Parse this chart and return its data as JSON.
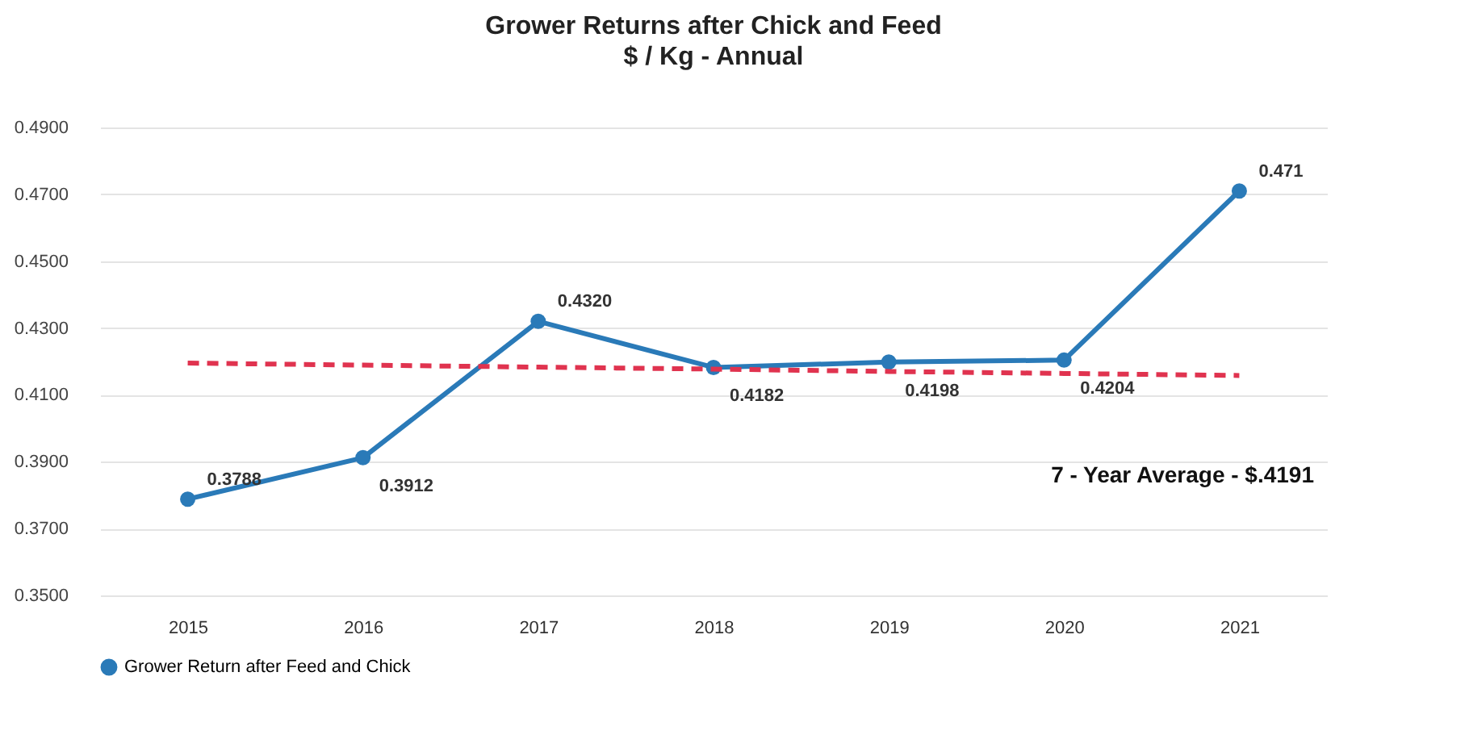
{
  "chart_data": {
    "type": "line",
    "title": "Grower Returns after Chick and Feed",
    "subtitle": "$ / Kg - Annual",
    "categories": [
      "2015",
      "2016",
      "2017",
      "2018",
      "2019",
      "2020",
      "2021"
    ],
    "series": [
      {
        "name": "Grower Return after Feed and Chick",
        "color": "#2a7ab8",
        "marker": "circle",
        "line_style": "solid",
        "values": [
          0.3788,
          0.3912,
          0.432,
          0.4182,
          0.4198,
          0.4204,
          0.471
        ],
        "value_labels": [
          "0.3788",
          "0.3912",
          "0.4320",
          "0.4182",
          "0.4198",
          "0.4204",
          "0.471"
        ]
      },
      {
        "type": "line",
        "color": "#e0334f",
        "marker": "none",
        "line_style": "dashed",
        "values": [
          0.4195,
          0.4189,
          0.4183,
          0.4177,
          0.417,
          0.4164,
          0.4158
        ]
      }
    ],
    "ylim": [
      0.35,
      0.49
    ],
    "yticks": [
      {
        "value": 0.35,
        "label": "0.3500"
      },
      {
        "value": 0.37,
        "label": "0.3700"
      },
      {
        "value": 0.39,
        "label": "0.3900"
      },
      {
        "value": 0.41,
        "label": "0.4100"
      },
      {
        "value": 0.43,
        "label": "0.4300"
      },
      {
        "value": 0.45,
        "label": "0.4500"
      },
      {
        "value": 0.47,
        "label": "0.4700"
      },
      {
        "value": 0.49,
        "label": "0.4900"
      }
    ],
    "grid": "y",
    "legend": "bottom",
    "annotations": [
      "7 - Year Average - $.4191"
    ]
  }
}
